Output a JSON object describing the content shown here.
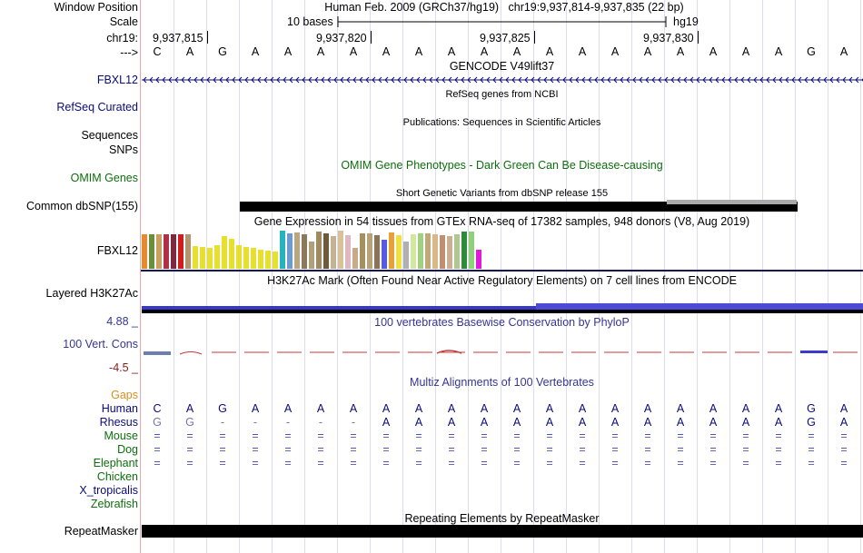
{
  "header": {
    "window_position_label": "Window Position",
    "scale_label": "Scale",
    "chrom_label": "chr19:",
    "strand_label": "--->",
    "assembly_title": "Human Feb. 2009 (GRCh37/hg19)   chr19:9,937,814-9,937,835 (22 bp)",
    "scale_text": "10 bases",
    "assembly_name": "hg19",
    "coords": [
      "9,937,815",
      "9,937,820",
      "9,937,825",
      "9,937,830"
    ],
    "bases": [
      "C",
      "A",
      "G",
      "A",
      "A",
      "A",
      "A",
      "A",
      "A",
      "A",
      "A",
      "A",
      "A",
      "A",
      "A",
      "A",
      "A",
      "A",
      "A",
      "A",
      "G",
      "A"
    ]
  },
  "tracks": {
    "gencode": {
      "title": "GENCODE V49lift37",
      "label": "FBXL12"
    },
    "refseq": {
      "title": "RefSeq genes from NCBI",
      "label": "RefSeq Curated"
    },
    "publications": {
      "title": "Publications: Sequences in Scientific Articles",
      "label_line1": "Sequences",
      "label_line2": "SNPs"
    },
    "omim": {
      "title": "OMIM Gene Phenotypes - Dark Green Can Be Disease-causing",
      "label": "OMIM Genes"
    },
    "dbsnp": {
      "title": "Short Genetic Variants from dbSNP release 155",
      "label": "Common dbSNP(155)"
    },
    "gtex": {
      "title": "Gene Expression in 54 tissues from GTEx RNA-seq of 17382 samples, 948 donors (V8, Aug 2019)",
      "label": "FBXL12"
    },
    "h3k27ac": {
      "title": "H3K27Ac Mark (Often Found Near Active Regulatory Elements) on 7 cell lines from ENCODE",
      "label": "Layered H3K27Ac"
    },
    "phylop": {
      "title": "100 vertebrates Basewise Conservation by PhyloP",
      "label": "100 Vert. Cons",
      "max": "4.88 _",
      "min": "-4.5 _"
    },
    "multiz": {
      "title": "Multiz Alignments of 100 Vertebrates",
      "gaps_label": "Gaps",
      "species": [
        "Human",
        "Rhesus",
        "Mouse",
        "Dog",
        "Elephant",
        "Chicken",
        "X_tropicalis",
        "Zebrafish"
      ],
      "human_row": [
        "C",
        "A",
        "G",
        "A",
        "A",
        "A",
        "A",
        "A",
        "A",
        "A",
        "A",
        "A",
        "A",
        "A",
        "A",
        "A",
        "A",
        "A",
        "A",
        "A",
        "G",
        "A"
      ],
      "rhesus_row": [
        "G",
        "G",
        "-",
        "-",
        "-",
        "-",
        "-",
        "A",
        "A",
        "A",
        "A",
        "A",
        "A",
        "A",
        "A",
        "A",
        "A",
        "A",
        "A",
        "A",
        "G",
        "A"
      ],
      "eq_symbol": "="
    },
    "repeatmasker": {
      "title": "Repeating Elements by RepeatMasker",
      "label": "RepeatMasker"
    }
  },
  "colors": {
    "navy": "#0b0b7a",
    "green": "#0d6e0d",
    "gaps_orange": "#d98f1c",
    "phylop_max": "#353593",
    "phylop_min": "#8a1b1b",
    "h3k27ac_blue": "#3737c8",
    "gtex_bars": [
      "#e58a2e",
      "#6c8d3a",
      "#c9a15f",
      "#b03049",
      "#7d2a40",
      "#d11d1d",
      "#b4936f",
      "#e8e02e",
      "#e8e02e",
      "#e8e02e",
      "#e8e02e",
      "#e8e02e",
      "#e8e02e",
      "#e8e02e",
      "#e8e02e",
      "#e8e02e",
      "#e8e02e",
      "#e8e02e",
      "#e8e02e",
      "#27b3bd",
      "#6b9bd1",
      "#b9a784",
      "#8a7a5a",
      "#b0a07a",
      "#a08a60",
      "#6e5a3a",
      "#c5b290",
      "#d7c29a",
      "#e0b8c0",
      "#c9a98a",
      "#a5905f",
      "#b7a27a",
      "#8b7355",
      "#5a5ae0",
      "#e8a03a",
      "#f0e040",
      "#b0b0b0",
      "#d2e8a0",
      "#a0d080",
      "#c0a878",
      "#d8b888",
      "#c09070",
      "#c8b090",
      "#b0c890",
      "#2e8b3a",
      "#8fd07a",
      "#e01ad8"
    ],
    "gtex_heights": [
      0.9,
      0.9,
      0.9,
      0.9,
      0.9,
      0.9,
      0.9,
      0.6,
      0.58,
      0.55,
      0.62,
      0.85,
      0.78,
      0.62,
      0.58,
      0.55,
      0.5,
      0.48,
      0.45,
      1.0,
      0.92,
      0.95,
      0.9,
      0.72,
      0.98,
      0.92,
      0.85,
      1.0,
      0.88,
      0.55,
      0.92,
      0.92,
      0.88,
      0.75,
      0.95,
      0.88,
      0.72,
      0.9,
      0.92,
      0.92,
      0.9,
      0.88,
      0.86,
      0.9,
      0.98,
      0.98,
      0.5
    ]
  }
}
